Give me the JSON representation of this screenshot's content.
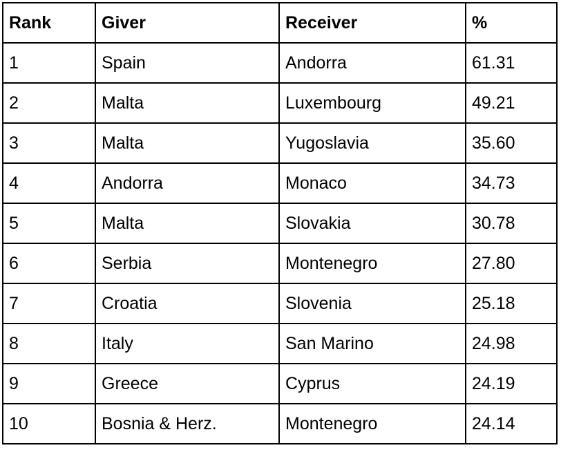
{
  "table": {
    "headers": {
      "rank": "Rank",
      "giver": "Giver",
      "receiver": "Receiver",
      "percent": "%"
    },
    "rows": [
      {
        "rank": "1",
        "giver": "Spain",
        "receiver": "Andorra",
        "percent": "61.31"
      },
      {
        "rank": "2",
        "giver": "Malta",
        "receiver": "Luxembourg",
        "percent": "49.21"
      },
      {
        "rank": "3",
        "giver": "Malta",
        "receiver": "Yugoslavia",
        "percent": "35.60"
      },
      {
        "rank": "4",
        "giver": "Andorra",
        "receiver": "Monaco",
        "percent": "34.73"
      },
      {
        "rank": "5",
        "giver": "Malta",
        "receiver": "Slovakia",
        "percent": "30.78"
      },
      {
        "rank": "6",
        "giver": "Serbia",
        "receiver": "Montenegro",
        "percent": "27.80"
      },
      {
        "rank": "7",
        "giver": "Croatia",
        "receiver": "Slovenia",
        "percent": "25.18"
      },
      {
        "rank": "8",
        "giver": "Italy",
        "receiver": "San Marino",
        "percent": "24.98"
      },
      {
        "rank": "9",
        "giver": "Greece",
        "receiver": "Cyprus",
        "percent": "24.19"
      },
      {
        "rank": "10",
        "giver": "Bosnia & Herz.",
        "receiver": "Montenegro",
        "percent": "24.14"
      }
    ]
  }
}
